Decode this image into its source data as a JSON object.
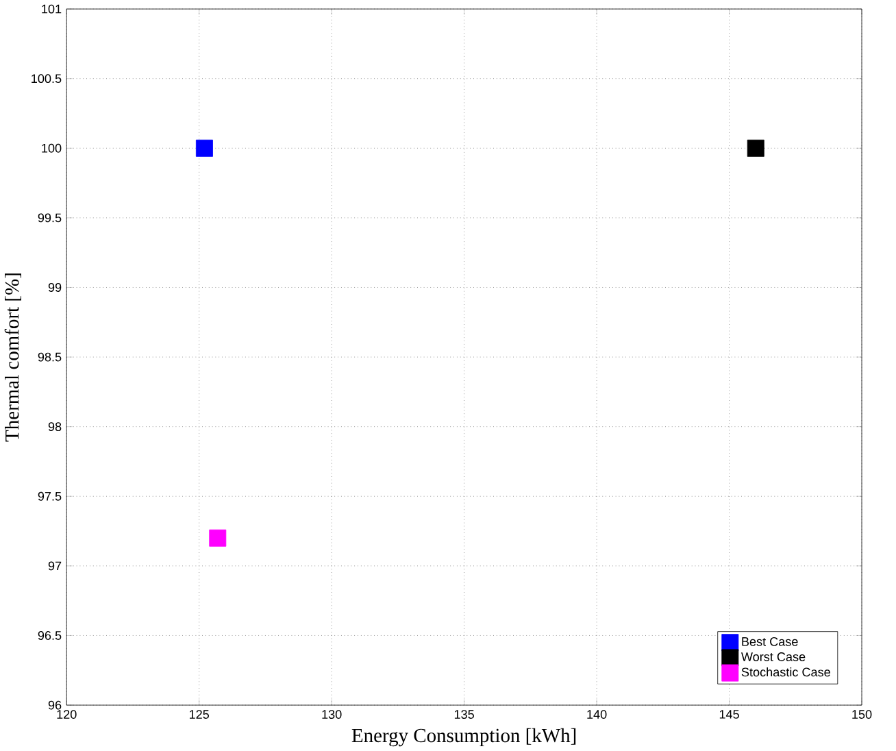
{
  "chart_data": {
    "type": "scatter",
    "xlabel": "Energy Consumption [kWh]",
    "ylabel": "Thermal comfort [%]",
    "series": [
      {
        "name": "Best Case",
        "color": "#0000ff",
        "x": [
          125.2
        ],
        "values": [
          100
        ]
      },
      {
        "name": "Worst Case",
        "color": "#000000",
        "x": [
          146.0
        ],
        "values": [
          100
        ]
      },
      {
        "name": "Stochastic Case",
        "color": "#ff00ff",
        "x": [
          125.7
        ],
        "values": [
          97.2
        ]
      }
    ],
    "xlim": [
      120,
      150
    ],
    "xticks": [
      120,
      125,
      130,
      135,
      140,
      145,
      150
    ],
    "ylim": [
      96,
      101
    ],
    "yticks": [
      96,
      96.5,
      97,
      97.5,
      98,
      98.5,
      99,
      99.5,
      100,
      100.5,
      101
    ],
    "grid": true,
    "legend": "bottom right",
    "marker": "square"
  }
}
